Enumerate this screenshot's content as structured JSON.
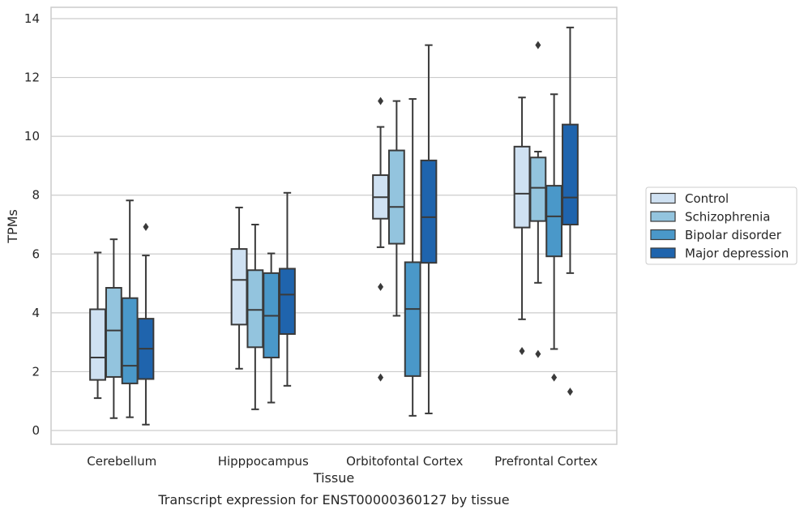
{
  "chart_data": {
    "type": "box",
    "xlabel": "Tissue",
    "ylabel": "TPMs",
    "caption": "Transcript expression for ENST00000360127 by tissue",
    "ylim": [
      -0.45,
      14.4
    ],
    "yticks": [
      0,
      2,
      4,
      6,
      8,
      10,
      12,
      14
    ],
    "grid": "horizontal",
    "legend_position": "right",
    "categories": [
      "Cerebellum",
      "Hipppocampus",
      "Orbitofontal Cortex",
      "Prefrontal Cortex"
    ],
    "series": [
      {
        "name": "Control",
        "color": "#cfe1f2",
        "boxes": [
          {
            "whislo": 1.1,
            "q1": 1.72,
            "med": 2.48,
            "q3": 4.12,
            "whishi": 6.05,
            "fliers": []
          },
          {
            "whislo": 2.1,
            "q1": 3.6,
            "med": 5.12,
            "q3": 6.17,
            "whishi": 7.58,
            "fliers": []
          },
          {
            "whislo": 6.23,
            "q1": 7.2,
            "med": 7.93,
            "q3": 8.68,
            "whishi": 10.32,
            "fliers": [
              11.2,
              4.88,
              1.8
            ]
          },
          {
            "whislo": 3.78,
            "q1": 6.9,
            "med": 8.05,
            "q3": 9.65,
            "whishi": 11.32,
            "fliers": [
              2.7
            ]
          }
        ]
      },
      {
        "name": "Schizophrenia",
        "color": "#93c4de",
        "boxes": [
          {
            "whislo": 0.42,
            "q1": 1.82,
            "med": 3.4,
            "q3": 4.85,
            "whishi": 6.5,
            "fliers": []
          },
          {
            "whislo": 0.72,
            "q1": 2.83,
            "med": 4.1,
            "q3": 5.45,
            "whishi": 7.0,
            "fliers": []
          },
          {
            "whislo": 3.9,
            "q1": 6.35,
            "med": 7.6,
            "q3": 9.52,
            "whishi": 11.2,
            "fliers": []
          },
          {
            "whislo": 5.02,
            "q1": 7.12,
            "med": 8.25,
            "q3": 9.28,
            "whishi": 9.48,
            "fliers": [
              13.1,
              2.6
            ]
          }
        ]
      },
      {
        "name": "Bipolar disorder",
        "color": "#4a98c9",
        "boxes": [
          {
            "whislo": 0.45,
            "q1": 1.6,
            "med": 2.2,
            "q3": 4.5,
            "whishi": 7.82,
            "fliers": []
          },
          {
            "whislo": 0.95,
            "q1": 2.48,
            "med": 3.9,
            "q3": 5.35,
            "whishi": 6.02,
            "fliers": []
          },
          {
            "whislo": 0.5,
            "q1": 1.85,
            "med": 4.13,
            "q3": 5.72,
            "whishi": 11.27,
            "fliers": []
          },
          {
            "whislo": 2.77,
            "q1": 5.92,
            "med": 7.28,
            "q3": 8.32,
            "whishi": 11.43,
            "fliers": [
              1.8
            ]
          }
        ]
      },
      {
        "name": "Major depression",
        "color": "#1f64ad",
        "boxes": [
          {
            "whislo": 0.2,
            "q1": 1.75,
            "med": 2.78,
            "q3": 3.8,
            "whishi": 5.95,
            "fliers": [
              6.92
            ]
          },
          {
            "whislo": 1.52,
            "q1": 3.28,
            "med": 4.62,
            "q3": 5.5,
            "whishi": 8.08,
            "fliers": []
          },
          {
            "whislo": 0.58,
            "q1": 5.7,
            "med": 7.25,
            "q3": 9.18,
            "whishi": 13.1,
            "fliers": []
          },
          {
            "whislo": 5.35,
            "q1": 7.0,
            "med": 7.92,
            "q3": 10.4,
            "whishi": 13.7,
            "fliers": [
              1.32
            ]
          }
        ]
      }
    ]
  }
}
